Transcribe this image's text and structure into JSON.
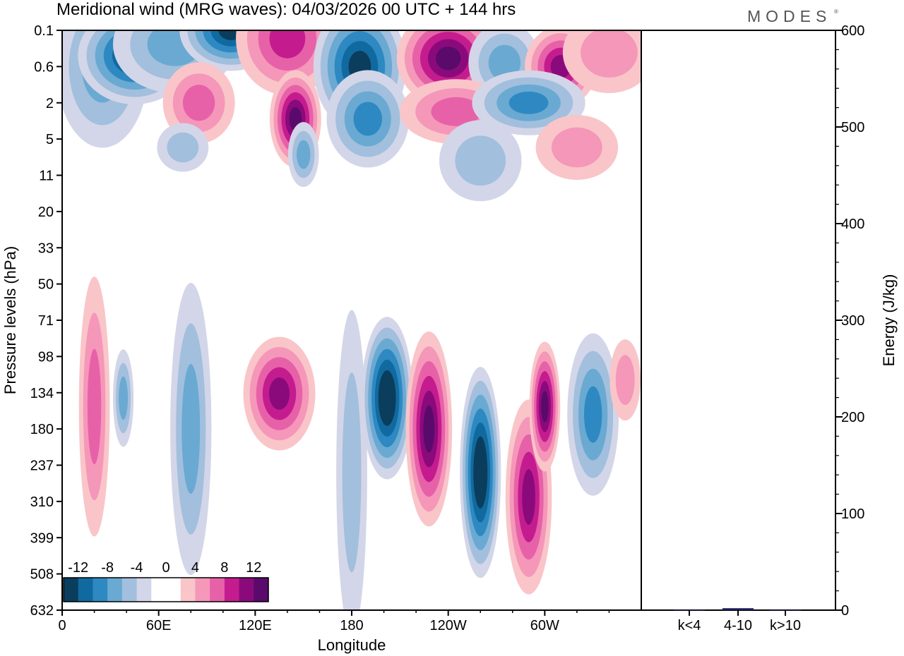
{
  "header": {
    "title": "Meridional wind (MRG waves):  04/03/2026  00 UTC  + 144 hrs",
    "brand": "MODES",
    "brand_mark": "®"
  },
  "chart_data": [
    {
      "type": "heatmap",
      "title": "Meridional wind (MRG waves):  04/03/2026  00 UTC  + 144 hrs",
      "xlabel": "Longitude",
      "ylabel": "Pressure levels (hPa)",
      "x_ticks": [
        "0",
        "60E",
        "120E",
        "180",
        "120W",
        "60W"
      ],
      "y_ticks": [
        "0.1",
        "0.6",
        "2",
        "5",
        "11",
        "20",
        "33",
        "50",
        "71",
        "98",
        "134",
        "180",
        "237",
        "310",
        "399",
        "508",
        "632"
      ],
      "colorbar": {
        "tick_labels": [
          "-12",
          "-8",
          "-4",
          "0",
          "4",
          "8",
          "12"
        ],
        "colors": [
          "#0b3d5c",
          "#106aa0",
          "#2e89c2",
          "#6aa9d2",
          "#a2bfdd",
          "#d3d6e8",
          "#ffffff",
          "#ffffff",
          "#f9c5c9",
          "#f597b9",
          "#e761a9",
          "#c41c8e",
          "#8a0a7c",
          "#5a0a6b"
        ]
      },
      "features": [
        {
          "lon": 25,
          "level": 0.6,
          "value": -6,
          "w": 18,
          "h": 0.1
        },
        {
          "lon": 45,
          "level": 0.35,
          "value": -11,
          "w": 22,
          "h": 0.06
        },
        {
          "lon": 70,
          "level": 0.2,
          "value": -6,
          "w": 24,
          "h": 0.06
        },
        {
          "lon": 105,
          "level": 0.1,
          "value": -11,
          "w": 20,
          "h": 0.05
        },
        {
          "lon": 140,
          "level": 0.15,
          "value": 8,
          "w": 20,
          "h": 0.07
        },
        {
          "lon": 185,
          "level": 0.6,
          "value": -11,
          "w": 18,
          "h": 0.08
        },
        {
          "lon": 240,
          "level": 0.4,
          "value": 12,
          "w": 20,
          "h": 0.06
        },
        {
          "lon": 275,
          "level": 0.5,
          "value": -6,
          "w": 14,
          "h": 0.05
        },
        {
          "lon": 310,
          "level": 0.6,
          "value": 10,
          "w": 14,
          "h": 0.05
        },
        {
          "lon": 340,
          "level": 0.3,
          "value": 4,
          "w": 18,
          "h": 0.05
        },
        {
          "lon": 85,
          "level": 2,
          "value": 6,
          "w": 14,
          "h": 0.05
        },
        {
          "lon": 145,
          "level": 3,
          "value": 12,
          "w": 10,
          "h": 0.06
        },
        {
          "lon": 190,
          "level": 3,
          "value": -7,
          "w": 16,
          "h": 0.06
        },
        {
          "lon": 245,
          "level": 2.5,
          "value": 5,
          "w": 22,
          "h": 0.04
        },
        {
          "lon": 290,
          "level": 2,
          "value": -8,
          "w": 22,
          "h": 0.04
        },
        {
          "lon": 150,
          "level": 7,
          "value": -5,
          "w": 6,
          "h": 0.04
        },
        {
          "lon": 320,
          "level": 6,
          "value": 3,
          "w": 16,
          "h": 0.04
        },
        {
          "lon": 260,
          "level": 8,
          "value": -3,
          "w": 16,
          "h": 0.05
        },
        {
          "lon": 75,
          "level": 6,
          "value": -3,
          "w": 10,
          "h": 0.03
        },
        {
          "lon": 20,
          "level": 150,
          "value": 6,
          "w": 6,
          "h": 0.16
        },
        {
          "lon": 38,
          "level": 140,
          "value": -6,
          "w": 4,
          "h": 0.06
        },
        {
          "lon": 80,
          "level": 180,
          "value": -5,
          "w": 8,
          "h": 0.18
        },
        {
          "lon": 135,
          "level": 135,
          "value": 9,
          "w": 14,
          "h": 0.07
        },
        {
          "lon": 180,
          "level": 250,
          "value": -3,
          "w": 6,
          "h": 0.2
        },
        {
          "lon": 202,
          "level": 140,
          "value": -13,
          "w": 10,
          "h": 0.1
        },
        {
          "lon": 228,
          "level": 180,
          "value": 12,
          "w": 9,
          "h": 0.12
        },
        {
          "lon": 260,
          "level": 250,
          "value": -13,
          "w": 8,
          "h": 0.13
        },
        {
          "lon": 290,
          "level": 300,
          "value": 10,
          "w": 9,
          "h": 0.12
        },
        {
          "lon": 300,
          "level": 150,
          "value": 11,
          "w": 6,
          "h": 0.08
        },
        {
          "lon": 330,
          "level": 160,
          "value": -8,
          "w": 10,
          "h": 0.1
        },
        {
          "lon": 350,
          "level": 120,
          "value": 4,
          "w": 6,
          "h": 0.05
        }
      ]
    },
    {
      "type": "bar",
      "categories": [
        "k<4",
        "4-10",
        "k>10"
      ],
      "values": [
        0.3,
        2.0,
        0.2
      ],
      "xlabel": "",
      "ylabel": "Energy (J/kg)",
      "ylim": [
        0,
        600
      ],
      "y_ticks": [
        "0",
        "100",
        "200",
        "300",
        "400",
        "500",
        "600"
      ]
    }
  ]
}
